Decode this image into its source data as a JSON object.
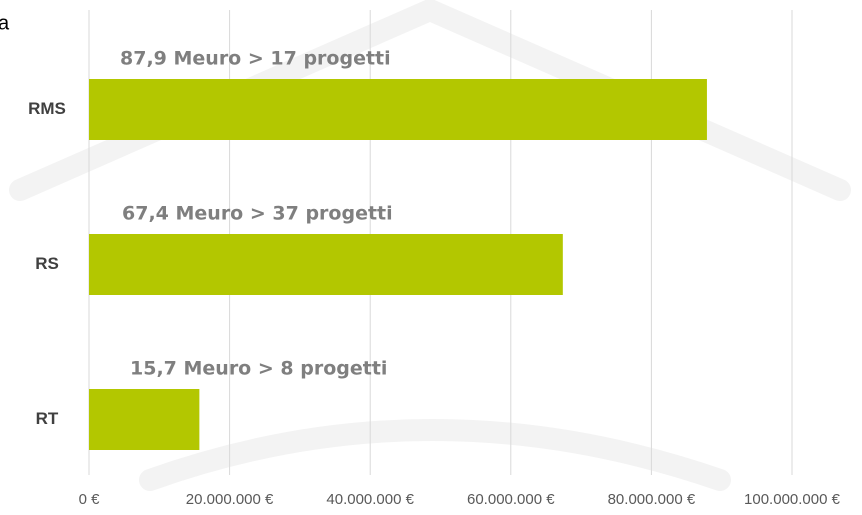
{
  "chart_data": {
    "type": "hbar",
    "title": "a",
    "categories": [
      "RMS",
      "RS",
      "RT"
    ],
    "values": [
      87900000,
      67400000,
      15700000
    ],
    "value_labels": [
      "87,9 Meuro > 17 progetti",
      "67,4 Meuro > 37 progetti",
      "15,7 Meuro > 8 progetti"
    ],
    "color": "#b3c700",
    "xlim": [
      0,
      100000000
    ],
    "xticks": [
      {
        "value": 0,
        "label": "0 €"
      },
      {
        "value": 20000000,
        "label": "20.000.000 €"
      },
      {
        "value": 40000000,
        "label": "40.000.000 €"
      },
      {
        "value": 60000000,
        "label": "60.000.000 €"
      },
      {
        "value": 80000000,
        "label": "80.000.000 €"
      },
      {
        "value": 100000000,
        "label": "100.000.000 €"
      }
    ],
    "grid": true
  }
}
